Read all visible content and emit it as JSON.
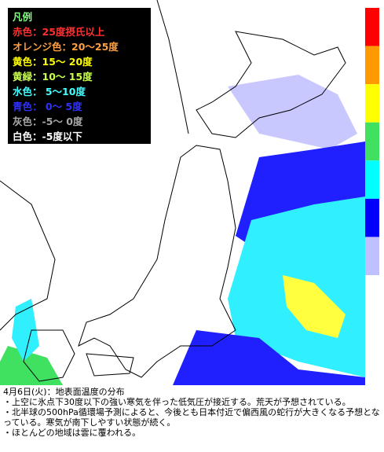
{
  "legend": {
    "title": "凡例",
    "items": [
      {
        "label": "赤色：25度摂氏以上",
        "color": "#ff3030"
      },
      {
        "label": "オレンジ色：20～25度",
        "color": "#ffa040"
      },
      {
        "label": "黄色：15～ 20度",
        "color": "#ffff00"
      },
      {
        "label": "黄緑：10～ 15度",
        "color": "#c8ff50"
      },
      {
        "label": "水色： 5～10度",
        "color": "#40ffff"
      },
      {
        "label": "青色： 0～ 5度",
        "color": "#3030ff"
      },
      {
        "label": "灰色：-5～ 0度",
        "color": "#a8a8a8"
      },
      {
        "label": "白色：-5度以下",
        "color": "#ffffff"
      }
    ]
  },
  "colorbar": [
    "#ff0000",
    "#ff9900",
    "#ffff00",
    "#40e060",
    "#00ffff",
    "#0000ff",
    "#c0c0ff"
  ],
  "caption": {
    "heading": "4月6日(火)：地表面温度の分布",
    "lines": [
      "・上空に氷点下30度以下の強い寒気を伴った低気圧が接近する。荒天が予想されている。",
      "・北半球の500hPa循環場予測によると、今後とも日本付近で偏西風の蛇行が大きくなる予想となっている。寒気が南下しやすい状態が続く。",
      "・ほとんどの地域は雲に覆われる。"
    ]
  }
}
